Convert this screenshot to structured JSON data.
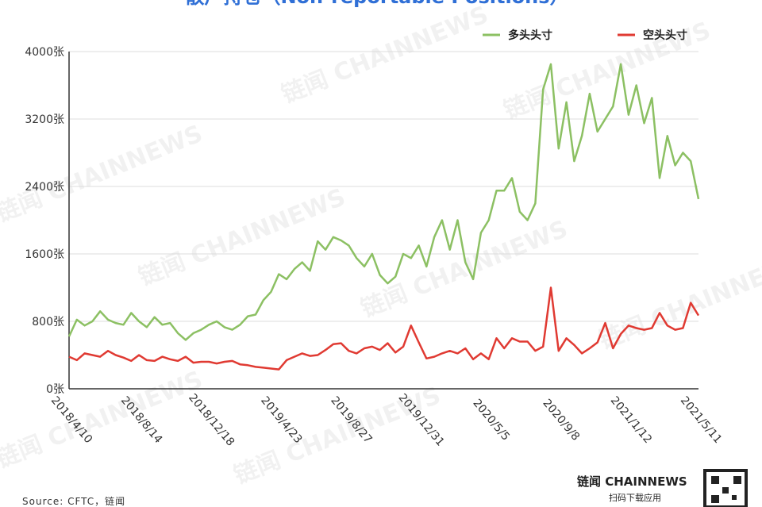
{
  "chart_data": {
    "type": "line",
    "title": "散户持仓（Non-reportable Positions）",
    "categories": [
      "2018/4/10",
      null,
      null,
      null,
      null,
      null,
      null,
      null,
      null,
      "2018/8/14",
      null,
      null,
      null,
      null,
      null,
      null,
      null,
      null,
      "2018/12/18",
      null,
      null,
      null,
      null,
      null,
      null,
      null,
      null,
      "2019/4/23",
      null,
      null,
      null,
      null,
      null,
      null,
      null,
      null,
      "2019/8/27",
      null,
      null,
      null,
      null,
      null,
      null,
      null,
      null,
      "2019/12/31",
      null,
      null,
      null,
      null,
      null,
      null,
      null,
      null,
      "2020/5/5",
      null,
      null,
      null,
      null,
      null,
      null,
      null,
      null,
      "2020/9/8",
      null,
      null,
      null,
      null,
      null,
      null,
      null,
      null,
      "2021/1/12",
      null,
      null,
      null,
      null,
      null,
      null,
      null,
      null,
      "2021/5/11"
    ],
    "series": [
      {
        "name": "多头头寸",
        "color": "#8cc063",
        "values": [
          620,
          820,
          750,
          800,
          920,
          820,
          780,
          760,
          900,
          800,
          730,
          850,
          760,
          780,
          660,
          580,
          660,
          700,
          760,
          800,
          730,
          700,
          760,
          860,
          880,
          1050,
          1150,
          1360,
          1300,
          1420,
          1500,
          1400,
          1750,
          1650,
          1800,
          1760,
          1700,
          1550,
          1450,
          1600,
          1350,
          1250,
          1330,
          1600,
          1550,
          1700,
          1450,
          1800,
          2000,
          1650,
          2000,
          1500,
          1300,
          1850,
          2000,
          2350,
          2350,
          2500,
          2100,
          2000,
          2200,
          3550,
          3850,
          2850,
          3400,
          2700,
          3000,
          3500,
          3050,
          3200,
          3350,
          3850,
          3250,
          3600,
          3150,
          3450,
          2500,
          3000,
          2650,
          2800,
          2700,
          2250
        ]
      },
      {
        "name": "空头头寸",
        "color": "#e03a32",
        "values": [
          380,
          340,
          420,
          400,
          380,
          450,
          400,
          370,
          330,
          400,
          340,
          330,
          380,
          350,
          330,
          380,
          310,
          320,
          320,
          300,
          320,
          330,
          290,
          280,
          260,
          250,
          240,
          230,
          340,
          380,
          420,
          390,
          400,
          460,
          530,
          540,
          450,
          420,
          480,
          500,
          460,
          540,
          430,
          500,
          750,
          550,
          360,
          380,
          420,
          450,
          420,
          480,
          350,
          420,
          350,
          600,
          480,
          600,
          560,
          560,
          450,
          500,
          1200,
          450,
          600,
          520,
          420,
          480,
          550,
          780,
          480,
          650,
          750,
          720,
          700,
          720,
          900,
          750,
          700,
          720,
          1020,
          870
        ]
      }
    ],
    "ylim": [
      0,
      4000
    ],
    "yticks": [
      {
        "value": 0,
        "label": "0张"
      },
      {
        "value": 800,
        "label": "800张"
      },
      {
        "value": 1600,
        "label": "1600张"
      },
      {
        "value": 2400,
        "label": "2400张"
      },
      {
        "value": 3200,
        "label": "3200张"
      },
      {
        "value": 4000,
        "label": "4000张"
      }
    ],
    "grid": true,
    "legend": "top-right",
    "source": "Source: CFTC，链闻",
    "watermark": "链闻 CHAINNEWS",
    "brand": {
      "name": "链闻 CHAINNEWS",
      "tagline": "扫码下载应用"
    }
  }
}
